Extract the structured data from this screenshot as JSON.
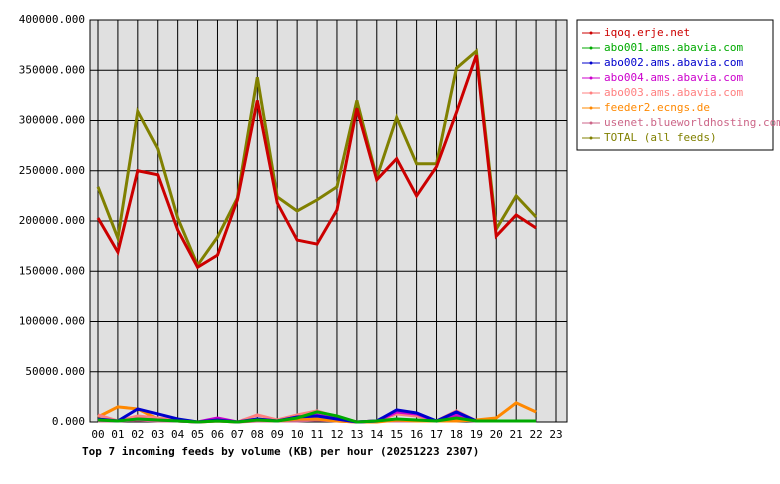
{
  "chart_data": {
    "type": "line",
    "title": "Top 7 incoming feeds by volume (KB) per hour (20251223 2307)",
    "categories": [
      "00",
      "01",
      "02",
      "03",
      "04",
      "05",
      "06",
      "07",
      "08",
      "09",
      "10",
      "11",
      "12",
      "13",
      "14",
      "15",
      "16",
      "17",
      "18",
      "19",
      "20",
      "21",
      "22",
      "23"
    ],
    "ylim": [
      0,
      400000
    ],
    "yticks": [
      {
        "value": 0,
        "label": "0.000"
      },
      {
        "value": 50000,
        "label": "50000.000"
      },
      {
        "value": 100000,
        "label": "100000.000"
      },
      {
        "value": 150000,
        "label": "150000.000"
      },
      {
        "value": 200000,
        "label": "200000.000"
      },
      {
        "value": 250000,
        "label": "250000.000"
      },
      {
        "value": 300000,
        "label": "300000.000"
      },
      {
        "value": 350000,
        "label": "350000.000"
      },
      {
        "value": 400000,
        "label": "400000.000"
      }
    ],
    "grid": true,
    "series": [
      {
        "name": "iqoq.erje.net",
        "color": "#cc0000",
        "values": [
          203000,
          169000,
          250000,
          246000,
          191000,
          154000,
          166000,
          221000,
          320000,
          218000,
          181000,
          177000,
          211000,
          312000,
          241000,
          262000,
          225000,
          254000,
          308000,
          365000,
          185000,
          206000,
          193000,
          null
        ]
      },
      {
        "name": "abo001.ams.abavia.com",
        "color": "#00aa00",
        "values": [
          2000,
          1000,
          3000,
          2000,
          1000,
          0,
          1000,
          0,
          2000,
          1000,
          4000,
          10000,
          6000,
          0,
          1000,
          3000,
          2000,
          1000,
          4000,
          1000,
          1000,
          1000,
          1000,
          null
        ]
      },
      {
        "name": "abo002.ams.abavia.com",
        "color": "#0000cc",
        "values": [
          3000,
          1000,
          13000,
          8000,
          3000,
          0,
          2000,
          0,
          3000,
          1000,
          5000,
          6000,
          3000,
          0,
          1000,
          12000,
          9000,
          1000,
          10000,
          1000,
          1000,
          1000,
          1000,
          null
        ]
      },
      {
        "name": "abo004.ams.abavia.com",
        "color": "#cc00cc",
        "values": [
          2000,
          1000,
          3000,
          2000,
          1000,
          0,
          4000,
          0,
          3000,
          1000,
          5000,
          7000,
          3000,
          0,
          1000,
          10000,
          8000,
          1000,
          7000,
          1000,
          1000,
          1000,
          1000,
          null
        ]
      },
      {
        "name": "abo003.ams.abavia.com",
        "color": "#ff8080",
        "values": [
          7000,
          1000,
          6000,
          4000,
          2000,
          0,
          2000,
          0,
          7000,
          2000,
          7000,
          11000,
          5000,
          0,
          1000,
          8000,
          6000,
          1000,
          11000,
          1000,
          1000,
          1000,
          1000,
          null
        ]
      },
      {
        "name": "feeder2.ecngs.de",
        "color": "#ff8800",
        "values": [
          5000,
          15000,
          13000,
          3000,
          1000,
          0,
          1000,
          0,
          2000,
          1000,
          3000,
          3000,
          1000,
          0,
          0,
          2000,
          1000,
          1000,
          1000,
          2000,
          4000,
          19000,
          10000,
          null
        ]
      },
      {
        "name": "usenet.blueworldhosting.com",
        "color": "#cc6688",
        "values": [
          1000,
          1000,
          2000,
          1000,
          1000,
          0,
          1000,
          0,
          1000,
          1000,
          1000,
          2000,
          1000,
          0,
          1000,
          1000,
          1000,
          1000,
          2000,
          1000,
          1000,
          1000,
          1000,
          null
        ]
      },
      {
        "name": "TOTAL (all feeds)",
        "color": "#808000",
        "values": [
          234000,
          183000,
          309000,
          272000,
          203000,
          156000,
          184000,
          223000,
          343000,
          224000,
          210000,
          221000,
          234000,
          320000,
          243000,
          303000,
          257000,
          257000,
          352000,
          369000,
          192000,
          225000,
          204000,
          null
        ]
      }
    ]
  }
}
